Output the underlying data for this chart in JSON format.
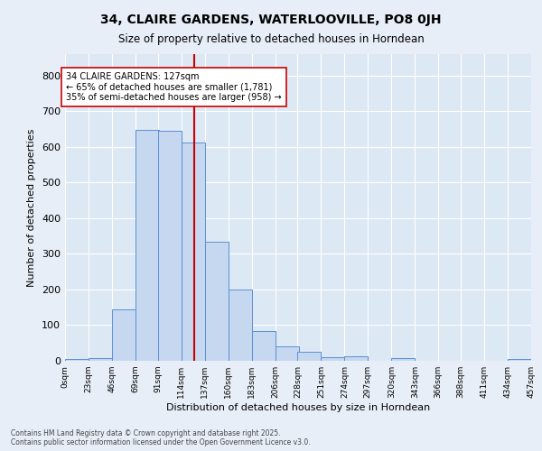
{
  "title": "34, CLAIRE GARDENS, WATERLOOVILLE, PO8 0JH",
  "subtitle": "Size of property relative to detached houses in Horndean",
  "xlabel": "Distribution of detached houses by size in Horndean",
  "ylabel": "Number of detached properties",
  "bar_color": "#c5d8f0",
  "bar_edge_color": "#5a8fd4",
  "background_color": "#dde8f5",
  "fig_background_color": "#e8eef8",
  "grid_color": "#ffffff",
  "bin_edges": [
    0,
    23,
    46,
    69,
    91,
    114,
    137,
    160,
    183,
    206,
    228,
    251,
    274,
    297,
    320,
    343,
    366,
    388,
    411,
    434,
    457
  ],
  "bin_labels": [
    "0sqm",
    "23sqm",
    "46sqm",
    "69sqm",
    "91sqm",
    "114sqm",
    "137sqm",
    "160sqm",
    "183sqm",
    "206sqm",
    "228sqm",
    "251sqm",
    "274sqm",
    "297sqm",
    "320sqm",
    "343sqm",
    "366sqm",
    "388sqm",
    "411sqm",
    "434sqm",
    "457sqm"
  ],
  "bar_heights": [
    5,
    8,
    143,
    648,
    645,
    611,
    335,
    200,
    83,
    40,
    25,
    10,
    12,
    0,
    8,
    0,
    0,
    0,
    0,
    5
  ],
  "vline_x": 127,
  "vline_color": "#cc0000",
  "annotation_title": "34 CLAIRE GARDENS: 127sqm",
  "annotation_line1": "← 65% of detached houses are smaller (1,781)",
  "annotation_line2": "35% of semi-detached houses are larger (958) →",
  "annotation_box_color": "#ffffff",
  "annotation_box_edge": "#cc0000",
  "ylim_max": 860,
  "yticks": [
    0,
    100,
    200,
    300,
    400,
    500,
    600,
    700,
    800
  ],
  "footer_line1": "Contains HM Land Registry data © Crown copyright and database right 2025.",
  "footer_line2": "Contains public sector information licensed under the Open Government Licence v3.0."
}
